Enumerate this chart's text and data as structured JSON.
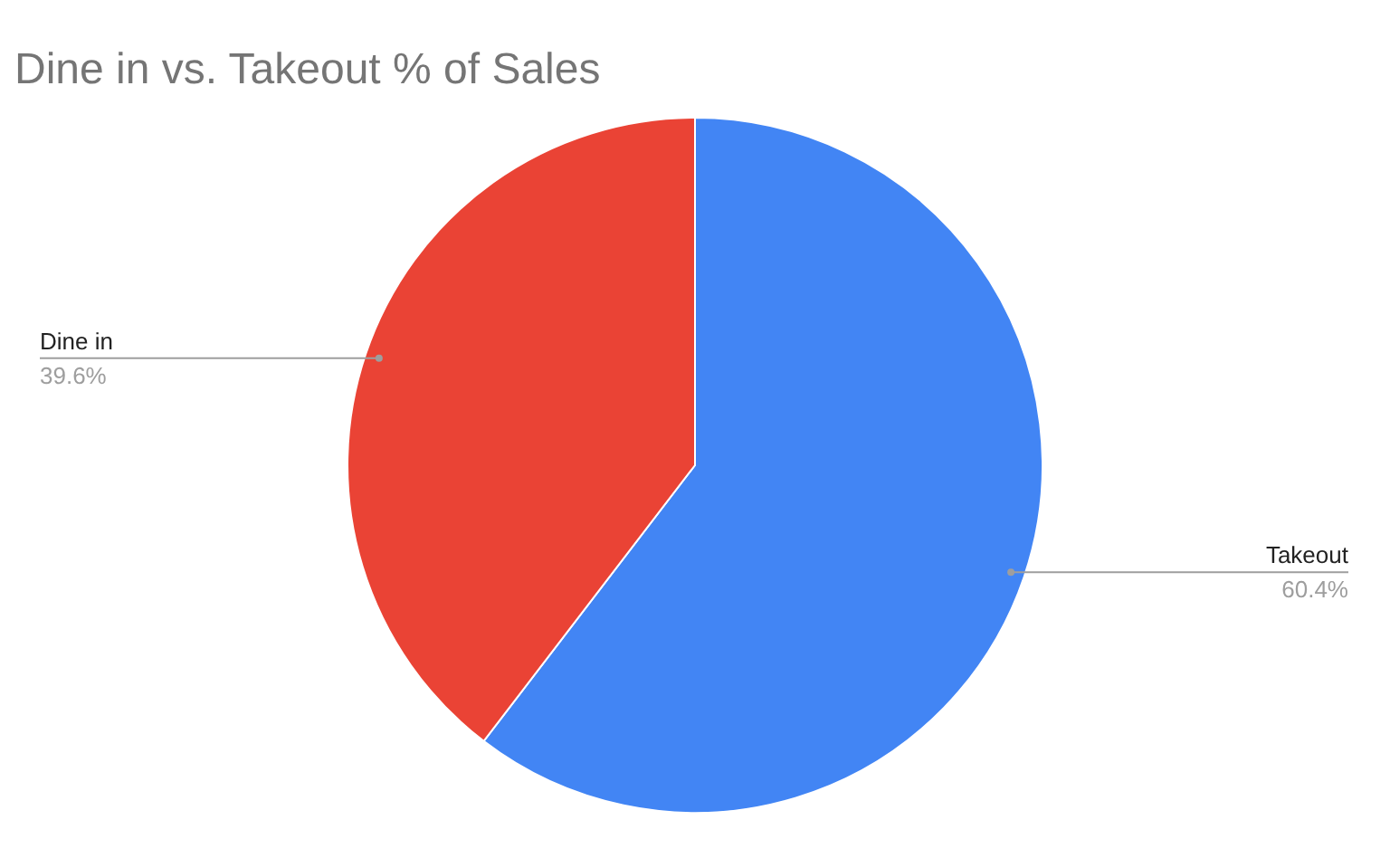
{
  "chart_data": {
    "type": "pie",
    "title": "Dine in vs. Takeout % of Sales",
    "categories": [
      "Takeout",
      "Dine in"
    ],
    "values": [
      60.4,
      39.6
    ],
    "colors": [
      "#4285f4",
      "#ea4335"
    ],
    "value_labels": [
      "60.4%",
      "39.6%"
    ]
  }
}
